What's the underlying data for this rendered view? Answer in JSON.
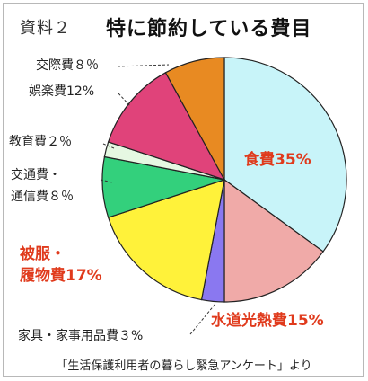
{
  "title_tag": "資料２",
  "title_main": "特に節約している費目",
  "source": "「生活保護利用者の暮らし緊急アンケート」より",
  "chart_data": {
    "type": "pie",
    "title": "特に節約している費目",
    "start_angle_deg": 0,
    "direction": "clockwise",
    "slices": [
      {
        "key": "food",
        "label_lines": [
          "食費35%"
        ],
        "value": 35,
        "color": "#c8f4f9",
        "emphasis": true
      },
      {
        "key": "utility",
        "label_lines": [
          "水道光熱費15%"
        ],
        "value": 15,
        "color": "#f0aaa8",
        "emphasis": true
      },
      {
        "key": "household",
        "label_lines": [
          "家具・家事用品費３%"
        ],
        "value": 3,
        "color": "#8a78f0",
        "emphasis": false
      },
      {
        "key": "clothing",
        "label_lines": [
          "被服・",
          "履物費17%"
        ],
        "value": 17,
        "color": "#fff23a",
        "emphasis": true
      },
      {
        "key": "transport",
        "label_lines": [
          "交通費・",
          "通信費８％"
        ],
        "value": 8,
        "color": "#33d07c",
        "emphasis": false
      },
      {
        "key": "education",
        "label_lines": [
          "教育費２％"
        ],
        "value": 2,
        "color": "#e6f8e2",
        "emphasis": false
      },
      {
        "key": "leisure",
        "label_lines": [
          "娯楽費12%"
        ],
        "value": 12,
        "color": "#e0437a",
        "emphasis": false
      },
      {
        "key": "social",
        "label_lines": [
          "交際費８％"
        ],
        "value": 8,
        "color": "#e88a22",
        "emphasis": false
      }
    ]
  }
}
